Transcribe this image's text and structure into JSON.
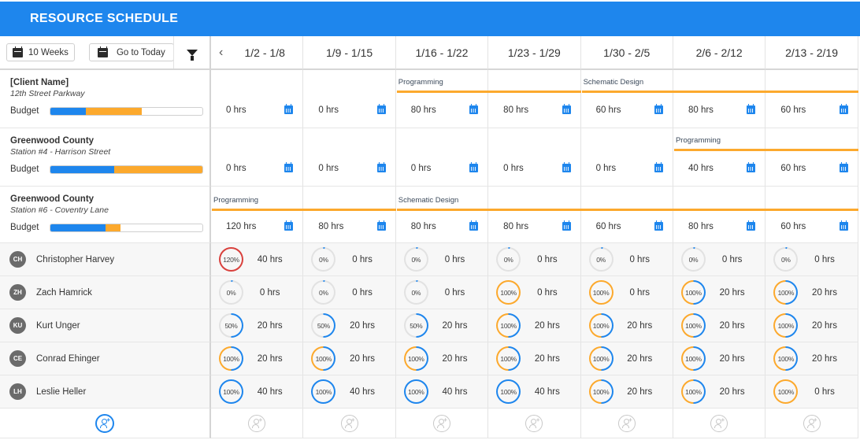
{
  "header": {
    "title": "RESOURCE SCHEDULE"
  },
  "toolbar": {
    "range_label": "10 Weeks",
    "today_label": "Go to Today",
    "prev_glyph": "‹"
  },
  "colors": {
    "accent": "#1e86ed",
    "phase": "#fca92d",
    "over": "#d9413d",
    "ring_track": "#e2e2e2"
  },
  "weeks": [
    "1/2 - 1/8",
    "1/9 - 1/15",
    "1/16 - 1/22",
    "1/23 - 1/29",
    "1/30 - 2/5",
    "2/6 - 2/12",
    "2/13 - 2/19"
  ],
  "projects": [
    {
      "client": "[Client Name]",
      "site": "12th Street Parkway",
      "budget_label": "Budget",
      "budget_used_pct": 23,
      "budget_planned_pct": 37,
      "hours": [
        "0 hrs",
        "0 hrs",
        "80 hrs",
        "80 hrs",
        "60 hrs",
        "80 hrs",
        "60 hrs"
      ],
      "phases": [
        {
          "label": "Programming",
          "start": 2,
          "end": 3
        },
        {
          "label": "Schematic Design",
          "start": 4,
          "end": 6
        }
      ]
    },
    {
      "client": "Greenwood County",
      "site": "Station #4 - Harrison Street",
      "budget_label": "Budget",
      "budget_used_pct": 42,
      "budget_planned_pct": 58,
      "hours": [
        "0 hrs",
        "0 hrs",
        "0 hrs",
        "0 hrs",
        "0 hrs",
        "40 hrs",
        "60 hrs"
      ],
      "phases": [
        {
          "label": "Programming",
          "start": 5,
          "end": 6
        }
      ]
    },
    {
      "client": "Greenwood County",
      "site": "Station #6 - Coventry Lane",
      "budget_label": "Budget",
      "budget_used_pct": 36,
      "budget_planned_pct": 10,
      "hours": [
        "120 hrs",
        "80 hrs",
        "80 hrs",
        "80 hrs",
        "60 hrs",
        "80 hrs",
        "60 hrs"
      ],
      "phases": [
        {
          "label": "Programming",
          "start": 0,
          "end": 1
        },
        {
          "label": "Schematic Design",
          "start": 2,
          "end": 6
        }
      ]
    }
  ],
  "people": [
    {
      "initials": "CH",
      "name": "Christopher Harvey",
      "weeks": [
        {
          "pct": "120%",
          "hrs": "40 hrs",
          "ring": "over"
        },
        {
          "pct": "0%",
          "hrs": "0 hrs",
          "ring": "empty"
        },
        {
          "pct": "0%",
          "hrs": "0 hrs",
          "ring": "empty"
        },
        {
          "pct": "0%",
          "hrs": "0 hrs",
          "ring": "empty"
        },
        {
          "pct": "0%",
          "hrs": "0 hrs",
          "ring": "empty"
        },
        {
          "pct": "0%",
          "hrs": "0 hrs",
          "ring": "empty"
        },
        {
          "pct": "0%",
          "hrs": "0 hrs",
          "ring": "empty"
        }
      ]
    },
    {
      "initials": "ZH",
      "name": "Zach Hamrick",
      "weeks": [
        {
          "pct": "0%",
          "hrs": "0 hrs",
          "ring": "empty"
        },
        {
          "pct": "0%",
          "hrs": "0 hrs",
          "ring": "empty"
        },
        {
          "pct": "0%",
          "hrs": "0 hrs",
          "ring": "empty"
        },
        {
          "pct": "100%",
          "hrs": "0 hrs",
          "ring": "orange"
        },
        {
          "pct": "100%",
          "hrs": "0 hrs",
          "ring": "orange"
        },
        {
          "pct": "100%",
          "hrs": "20 hrs",
          "ring": "half"
        },
        {
          "pct": "100%",
          "hrs": "20 hrs",
          "ring": "half"
        }
      ]
    },
    {
      "initials": "KU",
      "name": "Kurt Unger",
      "weeks": [
        {
          "pct": "50%",
          "hrs": "20 hrs",
          "ring": "fifty"
        },
        {
          "pct": "50%",
          "hrs": "20 hrs",
          "ring": "fifty"
        },
        {
          "pct": "50%",
          "hrs": "20 hrs",
          "ring": "fifty"
        },
        {
          "pct": "100%",
          "hrs": "20 hrs",
          "ring": "half"
        },
        {
          "pct": "100%",
          "hrs": "20 hrs",
          "ring": "half"
        },
        {
          "pct": "100%",
          "hrs": "20 hrs",
          "ring": "half"
        },
        {
          "pct": "100%",
          "hrs": "20 hrs",
          "ring": "half"
        }
      ]
    },
    {
      "initials": "CE",
      "name": "Conrad Ehinger",
      "weeks": [
        {
          "pct": "100%",
          "hrs": "20 hrs",
          "ring": "half"
        },
        {
          "pct": "100%",
          "hrs": "20 hrs",
          "ring": "half"
        },
        {
          "pct": "100%",
          "hrs": "20 hrs",
          "ring": "half"
        },
        {
          "pct": "100%",
          "hrs": "20 hrs",
          "ring": "half"
        },
        {
          "pct": "100%",
          "hrs": "20 hrs",
          "ring": "half"
        },
        {
          "pct": "100%",
          "hrs": "20 hrs",
          "ring": "half"
        },
        {
          "pct": "100%",
          "hrs": "20 hrs",
          "ring": "half"
        }
      ]
    },
    {
      "initials": "LH",
      "name": "Leslie Heller",
      "weeks": [
        {
          "pct": "100%",
          "hrs": "40 hrs",
          "ring": "blue"
        },
        {
          "pct": "100%",
          "hrs": "40 hrs",
          "ring": "blue"
        },
        {
          "pct": "100%",
          "hrs": "40 hrs",
          "ring": "blue"
        },
        {
          "pct": "100%",
          "hrs": "40 hrs",
          "ring": "blue"
        },
        {
          "pct": "100%",
          "hrs": "20 hrs",
          "ring": "half"
        },
        {
          "pct": "100%",
          "hrs": "20 hrs",
          "ring": "half"
        },
        {
          "pct": "100%",
          "hrs": "0 hrs",
          "ring": "orange"
        }
      ]
    }
  ]
}
